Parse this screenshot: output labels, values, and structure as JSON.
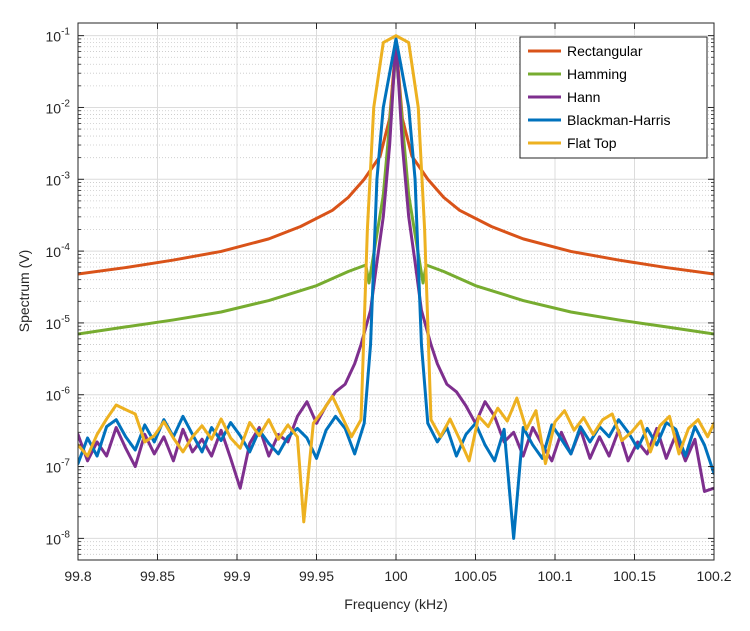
{
  "chart_data": {
    "type": "line",
    "title": "",
    "xlabel": "Frequency  (kHz)",
    "ylabel": "Spectrum  (V)",
    "xlim": [
      99.8,
      100.2
    ],
    "ylim": [
      5e-09,
      0.15
    ],
    "yscale": "log",
    "grid": true,
    "minor_grid": true,
    "legend_position": "top-right",
    "x_ticks": [
      99.8,
      99.85,
      99.9,
      99.95,
      100,
      100.05,
      100.1,
      100.15,
      100.2
    ],
    "x_tick_labels": [
      "99.8",
      "99.85",
      "99.9",
      "99.95",
      "100",
      "100.05",
      "100.1",
      "100.15",
      "100.2"
    ],
    "y_tick_exponents": [
      -8,
      -7,
      -6,
      -5,
      -4,
      -3,
      -2,
      -1
    ],
    "y_tick_base": "10",
    "series": [
      {
        "name": "Rectangular",
        "color": "#D95319",
        "points": [
          [
            99.8,
            4.8e-05
          ],
          [
            99.83,
            5.9e-05
          ],
          [
            99.86,
            7.5e-05
          ],
          [
            99.89,
            9.9e-05
          ],
          [
            99.92,
            0.000148
          ],
          [
            99.94,
            0.00022
          ],
          [
            99.96,
            0.00037
          ],
          [
            99.97,
            0.00056
          ],
          [
            99.98,
            0.001
          ],
          [
            99.99,
            0.0021
          ],
          [
            99.996,
            0.007
          ],
          [
            100,
            0.08
          ],
          [
            100.004,
            0.007
          ],
          [
            100.01,
            0.0021
          ],
          [
            100.02,
            0.001
          ],
          [
            100.03,
            0.00056
          ],
          [
            100.04,
            0.00037
          ],
          [
            100.06,
            0.00022
          ],
          [
            100.08,
            0.000148
          ],
          [
            100.11,
            9.9e-05
          ],
          [
            100.14,
            7.5e-05
          ],
          [
            100.17,
            5.9e-05
          ],
          [
            100.2,
            4.8e-05
          ]
        ]
      },
      {
        "name": "Hamming",
        "color": "#77AC30",
        "points": [
          [
            99.8,
            7e-06
          ],
          [
            99.83,
            8.8e-06
          ],
          [
            99.86,
            1.1e-05
          ],
          [
            99.89,
            1.42e-05
          ],
          [
            99.92,
            2.05e-05
          ],
          [
            99.95,
            3.3e-05
          ],
          [
            99.97,
            5.2e-05
          ],
          [
            99.981,
            6.4e-05
          ],
          [
            99.983,
            3.6e-05
          ],
          [
            99.992,
            0.0006
          ],
          [
            100,
            0.06
          ],
          [
            100.008,
            0.0006
          ],
          [
            100.017,
            3.6e-05
          ],
          [
            100.019,
            6.4e-05
          ],
          [
            100.03,
            5.2e-05
          ],
          [
            100.05,
            3.3e-05
          ],
          [
            100.08,
            2.05e-05
          ],
          [
            100.11,
            1.42e-05
          ],
          [
            100.14,
            1.1e-05
          ],
          [
            100.17,
            8.8e-06
          ],
          [
            100.2,
            7e-06
          ]
        ]
      },
      {
        "name": "Hann",
        "color": "#7E2F8E",
        "points": [
          [
            99.8,
            2.8e-07
          ],
          [
            99.806,
            1.2e-07
          ],
          [
            99.812,
            2.2e-07
          ],
          [
            99.818,
            1.4e-07
          ],
          [
            99.824,
            3.5e-07
          ],
          [
            99.83,
            1.8e-07
          ],
          [
            99.836,
            1e-07
          ],
          [
            99.842,
            2.8e-07
          ],
          [
            99.848,
            1.5e-07
          ],
          [
            99.854,
            2.6e-07
          ],
          [
            99.86,
            1.2e-07
          ],
          [
            99.866,
            3.3e-07
          ],
          [
            99.872,
            1.6e-07
          ],
          [
            99.878,
            2.4e-07
          ],
          [
            99.884,
            1.4e-07
          ],
          [
            99.89,
            3.2e-07
          ],
          [
            99.896,
            1.3e-07
          ],
          [
            99.902,
            5e-08
          ],
          [
            99.908,
            2.1e-07
          ],
          [
            99.914,
            3.5e-07
          ],
          [
            99.92,
            1.4e-07
          ],
          [
            99.926,
            2.8e-07
          ],
          [
            99.932,
            2.2e-07
          ],
          [
            99.938,
            5e-07
          ],
          [
            99.944,
            8e-07
          ],
          [
            99.95,
            4e-07
          ],
          [
            99.956,
            7e-07
          ],
          [
            99.962,
            1.1e-06
          ],
          [
            99.968,
            1.4e-06
          ],
          [
            99.974,
            2.7e-06
          ],
          [
            99.978,
            5e-06
          ],
          [
            99.984,
            1.5e-05
          ],
          [
            99.988,
            7e-05
          ],
          [
            99.992,
            0.0003
          ],
          [
            99.996,
            0.003
          ],
          [
            100,
            0.09
          ],
          [
            100.004,
            0.003
          ],
          [
            100.008,
            0.0003
          ],
          [
            100.012,
            7e-05
          ],
          [
            100.016,
            1.5e-05
          ],
          [
            100.022,
            5e-06
          ],
          [
            100.026,
            2.7e-06
          ],
          [
            100.032,
            1.4e-06
          ],
          [
            100.038,
            1.1e-06
          ],
          [
            100.044,
            7e-07
          ],
          [
            100.05,
            4e-07
          ],
          [
            100.056,
            8e-07
          ],
          [
            100.062,
            5e-07
          ],
          [
            100.068,
            2.2e-07
          ],
          [
            100.074,
            3e-07
          ],
          [
            100.08,
            1.4e-07
          ],
          [
            100.086,
            3.5e-07
          ],
          [
            100.092,
            2e-07
          ],
          [
            100.098,
            1.2e-07
          ],
          [
            100.104,
            3e-07
          ],
          [
            100.11,
            1.5e-07
          ],
          [
            100.116,
            3.3e-07
          ],
          [
            100.122,
            1.3e-07
          ],
          [
            100.128,
            2.6e-07
          ],
          [
            100.134,
            1.4e-07
          ],
          [
            100.14,
            3.2e-07
          ],
          [
            100.146,
            1.2e-07
          ],
          [
            100.152,
            2.2e-07
          ],
          [
            100.158,
            1.5e-07
          ],
          [
            100.164,
            3.4e-07
          ],
          [
            100.17,
            1.3e-07
          ],
          [
            100.176,
            2.8e-07
          ],
          [
            100.182,
            1.2e-07
          ],
          [
            100.188,
            2.4e-07
          ],
          [
            100.194,
            4.5e-08
          ],
          [
            100.2,
            5e-08
          ]
        ]
      },
      {
        "name": "Blackman-Harris",
        "color": "#0072BD",
        "points": [
          [
            99.8,
            1.1e-07
          ],
          [
            99.806,
            2.5e-07
          ],
          [
            99.812,
            1.4e-07
          ],
          [
            99.818,
            3.6e-07
          ],
          [
            99.824,
            4.5e-07
          ],
          [
            99.83,
            2.6e-07
          ],
          [
            99.836,
            1.7e-07
          ],
          [
            99.842,
            3.8e-07
          ],
          [
            99.848,
            2.2e-07
          ],
          [
            99.854,
            4.5e-07
          ],
          [
            99.86,
            2.6e-07
          ],
          [
            99.866,
            5e-07
          ],
          [
            99.872,
            2.8e-07
          ],
          [
            99.878,
            1.6e-07
          ],
          [
            99.884,
            3.5e-07
          ],
          [
            99.89,
            2.3e-07
          ],
          [
            99.896,
            4.1e-07
          ],
          [
            99.902,
            2.7e-07
          ],
          [
            99.908,
            1.6e-07
          ],
          [
            99.914,
            3.2e-07
          ],
          [
            99.92,
            2.1e-07
          ],
          [
            99.926,
            1.5e-07
          ],
          [
            99.932,
            2.6e-07
          ],
          [
            99.938,
            3.4e-07
          ],
          [
            99.944,
            2.5e-07
          ],
          [
            99.95,
            1.3e-07
          ],
          [
            99.956,
            3.2e-07
          ],
          [
            99.962,
            5e-07
          ],
          [
            99.968,
            3.4e-07
          ],
          [
            99.974,
            1.5e-07
          ],
          [
            99.98,
            4e-07
          ],
          [
            99.984,
            5e-06
          ],
          [
            99.988,
            0.001
          ],
          [
            99.992,
            0.01
          ],
          [
            100,
            0.09
          ],
          [
            100.008,
            0.01
          ],
          [
            100.012,
            0.001
          ],
          [
            100.016,
            5e-06
          ],
          [
            100.02,
            4e-07
          ],
          [
            100.026,
            2.2e-07
          ],
          [
            100.032,
            3.5e-07
          ],
          [
            100.038,
            1.4e-07
          ],
          [
            100.044,
            2.8e-07
          ],
          [
            100.05,
            4e-07
          ],
          [
            100.056,
            2e-07
          ],
          [
            100.062,
            1.2e-07
          ],
          [
            100.068,
            3.3e-07
          ],
          [
            100.074,
            1e-08
          ],
          [
            100.08,
            3.5e-07
          ],
          [
            100.086,
            2e-07
          ],
          [
            100.092,
            1.3e-07
          ],
          [
            100.098,
            3.8e-07
          ],
          [
            100.104,
            2.4e-07
          ],
          [
            100.11,
            1.5e-07
          ],
          [
            100.116,
            3.6e-07
          ],
          [
            100.122,
            2.2e-07
          ],
          [
            100.128,
            3.6e-07
          ],
          [
            100.134,
            2.6e-07
          ],
          [
            100.14,
            4.5e-07
          ],
          [
            100.146,
            3e-07
          ],
          [
            100.152,
            1.8e-07
          ],
          [
            100.158,
            3.4e-07
          ],
          [
            100.164,
            2e-07
          ],
          [
            100.17,
            4.1e-07
          ],
          [
            100.176,
            3.3e-07
          ],
          [
            100.182,
            1.4e-07
          ],
          [
            100.188,
            3.6e-07
          ],
          [
            100.194,
            2e-07
          ],
          [
            100.2,
            8e-08
          ]
        ]
      },
      {
        "name": "Flat Top",
        "color": "#EDB120",
        "points": [
          [
            99.8,
            2e-07
          ],
          [
            99.806,
            1.4e-07
          ],
          [
            99.812,
            2.8e-07
          ],
          [
            99.818,
            4.6e-07
          ],
          [
            99.824,
            7.2e-07
          ],
          [
            99.83,
            6.2e-07
          ],
          [
            99.836,
            5.4e-07
          ],
          [
            99.842,
            2.2e-07
          ],
          [
            99.848,
            2.7e-07
          ],
          [
            99.854,
            4.2e-07
          ],
          [
            99.86,
            2.5e-07
          ],
          [
            99.866,
            1.6e-07
          ],
          [
            99.872,
            2.6e-07
          ],
          [
            99.878,
            3.7e-07
          ],
          [
            99.884,
            2.4e-07
          ],
          [
            99.89,
            4.6e-07
          ],
          [
            99.896,
            2.5e-07
          ],
          [
            99.902,
            1.8e-07
          ],
          [
            99.908,
            4.1e-07
          ],
          [
            99.914,
            2.7e-07
          ],
          [
            99.92,
            4.5e-07
          ],
          [
            99.926,
            2.4e-07
          ],
          [
            99.932,
            3.8e-07
          ],
          [
            99.938,
            2.6e-07
          ],
          [
            99.942,
            1.7e-08
          ],
          [
            99.948,
            4e-07
          ],
          [
            99.954,
            6e-07
          ],
          [
            99.96,
            9.5e-07
          ],
          [
            99.966,
            5e-07
          ],
          [
            99.972,
            2.6e-07
          ],
          [
            99.978,
            4.5e-07
          ],
          [
            99.982,
            0.0002
          ],
          [
            99.986,
            0.01
          ],
          [
            99.992,
            0.08
          ],
          [
            100,
            0.1
          ],
          [
            100.008,
            0.08
          ],
          [
            100.014,
            0.01
          ],
          [
            100.018,
            0.0002
          ],
          [
            100.022,
            4.5e-07
          ],
          [
            100.028,
            2.6e-07
          ],
          [
            100.034,
            4.6e-07
          ],
          [
            100.04,
            2.4e-07
          ],
          [
            100.046,
            1.2e-07
          ],
          [
            100.052,
            5e-07
          ],
          [
            100.058,
            3.6e-07
          ],
          [
            100.064,
            6.5e-07
          ],
          [
            100.07,
            4.3e-07
          ],
          [
            100.076,
            9e-07
          ],
          [
            100.082,
            3.3e-07
          ],
          [
            100.088,
            6e-07
          ],
          [
            100.094,
            1.1e-07
          ],
          [
            100.1,
            4.2e-07
          ],
          [
            100.106,
            6e-07
          ],
          [
            100.112,
            3.2e-07
          ],
          [
            100.118,
            4.8e-07
          ],
          [
            100.124,
            2.8e-07
          ],
          [
            100.13,
            4.5e-07
          ],
          [
            100.136,
            5.4e-07
          ],
          [
            100.142,
            2.3e-07
          ],
          [
            100.148,
            3e-07
          ],
          [
            100.154,
            4.3e-07
          ],
          [
            100.16,
            1.6e-07
          ],
          [
            100.166,
            3.7e-07
          ],
          [
            100.172,
            5e-07
          ],
          [
            100.178,
            1.5e-07
          ],
          [
            100.184,
            3.4e-07
          ],
          [
            100.19,
            4.5e-07
          ],
          [
            100.196,
            2.6e-07
          ],
          [
            100.2,
            4e-07
          ]
        ]
      }
    ]
  }
}
